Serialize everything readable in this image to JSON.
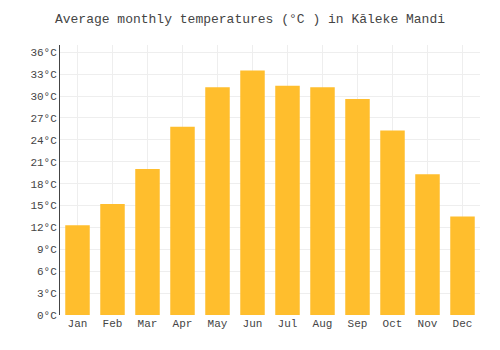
{
  "chart_data": {
    "type": "bar",
    "title": "Average monthly temperatures (°C ) in Kāleke Mandi",
    "categories": [
      "Jan",
      "Feb",
      "Mar",
      "Apr",
      "May",
      "Jun",
      "Jul",
      "Aug",
      "Sep",
      "Oct",
      "Nov",
      "Dec"
    ],
    "values": [
      12.3,
      15.2,
      20.0,
      25.8,
      31.2,
      33.5,
      31.4,
      31.2,
      29.6,
      25.3,
      19.3,
      13.5
    ],
    "color": "#FFBE2D",
    "ylim": [
      0,
      37
    ],
    "yticks": [
      {
        "value": 0,
        "label": "0°C"
      },
      {
        "value": 3,
        "label": "3°C"
      },
      {
        "value": 6,
        "label": "6°C"
      },
      {
        "value": 9,
        "label": "9°C"
      },
      {
        "value": 12,
        "label": "12°C"
      },
      {
        "value": 15,
        "label": "15°C"
      },
      {
        "value": 18,
        "label": "18°C"
      },
      {
        "value": 21,
        "label": "21°C"
      },
      {
        "value": 24,
        "label": "24°C"
      },
      {
        "value": 27,
        "label": "27°C"
      },
      {
        "value": 30,
        "label": "30°C"
      },
      {
        "value": 33,
        "label": "33°C"
      },
      {
        "value": 36,
        "label": "36°C"
      }
    ],
    "grid": true
  }
}
